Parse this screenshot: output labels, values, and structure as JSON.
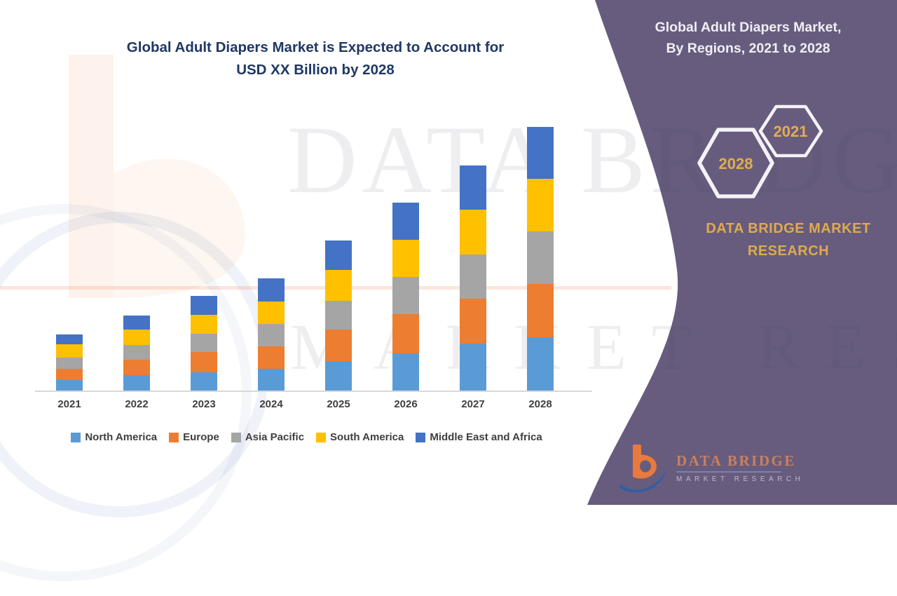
{
  "left_panel": {
    "title_line1": "Global Adult Diapers Market is Expected to Account for",
    "title_line2": "USD XX Billion by 2028",
    "title_color": "#1F3864"
  },
  "right_panel": {
    "bg_color": "#675C7E",
    "title_line1": "Global Adult Diapers Market,",
    "title_line2": "By Regions, 2021 to 2028",
    "hexagons": [
      {
        "label": "2021"
      },
      {
        "label": "2028"
      }
    ],
    "hexagon_text_color": "#E2AD50",
    "brand_line1": "DATA BRIDGE MARKET",
    "brand_line2": "RESEARCH",
    "brand_color": "#DFAA4E",
    "logo": {
      "name": "DATA BRIDGE",
      "subtitle": "MARKET RESEARCH"
    }
  },
  "watermark": {
    "line1": "DATA BRIDGE",
    "line2": "MARKET RESEARCH"
  },
  "chart_data": {
    "type": "bar",
    "stacked": true,
    "title": "Global Adult Diapers Market is Expected to Account for USD XX Billion by 2028",
    "xlabel": "",
    "ylabel": "",
    "y_axis_visible": false,
    "grid": false,
    "legend_position": "bottom",
    "value_note": "No numeric axis shown (market value displayed as 'USD XX Billion'); values below are relative stacked-segment heights estimated from the chart, in arbitrary units.",
    "categories": [
      "2021",
      "2022",
      "2023",
      "2024",
      "2025",
      "2026",
      "2027",
      "2028"
    ],
    "series": [
      {
        "name": "North America",
        "color": "#5B9BD5",
        "values": [
          15,
          22,
          26,
          31,
          42,
          53,
          67,
          76
        ]
      },
      {
        "name": "Europe",
        "color": "#ED7D31",
        "values": [
          16,
          22,
          29,
          32,
          45,
          56,
          64,
          76
        ]
      },
      {
        "name": "Asia Pacific",
        "color": "#A5A5A5",
        "values": [
          16,
          21,
          26,
          32,
          41,
          53,
          63,
          75
        ]
      },
      {
        "name": "South America",
        "color": "#FFC000",
        "values": [
          19,
          22,
          27,
          32,
          44,
          53,
          64,
          75
        ]
      },
      {
        "name": "Middle East and Africa",
        "color": "#4472C4",
        "values": [
          14,
          20,
          27,
          33,
          42,
          53,
          63,
          74
        ]
      }
    ],
    "totals": [
      80,
      107,
      135,
      160,
      214,
      268,
      321,
      376
    ]
  }
}
